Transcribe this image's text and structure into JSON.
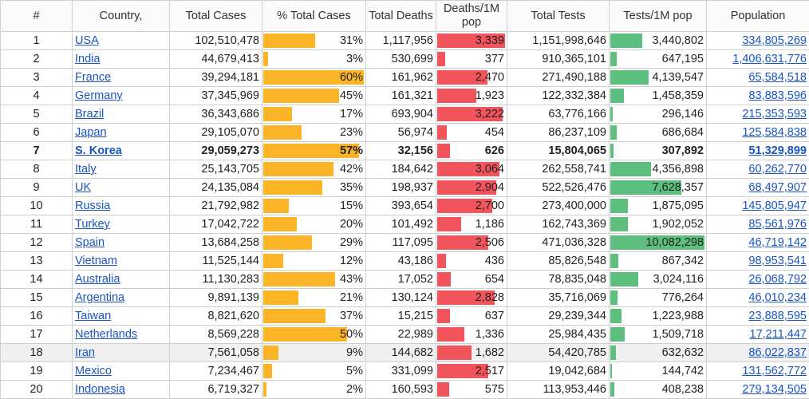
{
  "headers": {
    "rank": "#",
    "country": "Country,",
    "total_cases": "Total Cases",
    "pct_cases": "% Total Cases",
    "total_deaths": "Total Deaths",
    "deaths_per_m": "Deaths/1M pop",
    "total_tests": "Total Tests",
    "tests_per_m": "Tests/1M pop",
    "population": "Population"
  },
  "colors": {
    "pct_bar": "#fbb425",
    "deaths_bar": "#f2545b",
    "tests_bar": "#5cbf7d",
    "link": "#1a55c0"
  },
  "scale": {
    "pct_max": 60,
    "deaths_per_m_max": 3339,
    "tests_per_m_max": 10082298
  },
  "rows": [
    {
      "rank": "1",
      "country": "USA",
      "total_cases": "102,510,478",
      "pct": "31%",
      "pct_value": 31,
      "total_deaths": "1,117,956",
      "deaths_per_m": "3,339",
      "deaths_per_m_value": 3339,
      "total_tests": "1,151,998,646",
      "tests_per_m": "3,440,802",
      "tests_per_m_value": 3440802,
      "population": "334,805,269"
    },
    {
      "rank": "2",
      "country": "India",
      "total_cases": "44,679,413",
      "pct": "3%",
      "pct_value": 3,
      "total_deaths": "530,699",
      "deaths_per_m": "377",
      "deaths_per_m_value": 377,
      "total_tests": "910,365,101",
      "tests_per_m": "647,195",
      "tests_per_m_value": 647195,
      "population": "1,406,631,776"
    },
    {
      "rank": "3",
      "country": "France",
      "total_cases": "39,294,181",
      "pct": "60%",
      "pct_value": 60,
      "total_deaths": "161,962",
      "deaths_per_m": "2,470",
      "deaths_per_m_value": 2470,
      "total_tests": "271,490,188",
      "tests_per_m": "4,139,547",
      "tests_per_m_value": 4139547,
      "population": "65,584,518"
    },
    {
      "rank": "4",
      "country": "Germany",
      "total_cases": "37,345,969",
      "pct": "45%",
      "pct_value": 45,
      "total_deaths": "161,321",
      "deaths_per_m": "1,923",
      "deaths_per_m_value": 1923,
      "total_tests": "122,332,384",
      "tests_per_m": "1,458,359",
      "tests_per_m_value": 1458359,
      "population": "83,883,596"
    },
    {
      "rank": "5",
      "country": "Brazil",
      "total_cases": "36,343,686",
      "pct": "17%",
      "pct_value": 17,
      "total_deaths": "693,904",
      "deaths_per_m": "3,222",
      "deaths_per_m_value": 3222,
      "total_tests": "63,776,166",
      "tests_per_m": "296,146",
      "tests_per_m_value": 296146,
      "population": "215,353,593"
    },
    {
      "rank": "6",
      "country": "Japan",
      "total_cases": "29,105,070",
      "pct": "23%",
      "pct_value": 23,
      "total_deaths": "56,974",
      "deaths_per_m": "454",
      "deaths_per_m_value": 454,
      "total_tests": "86,237,109",
      "tests_per_m": "686,684",
      "tests_per_m_value": 686684,
      "population": "125,584,838"
    },
    {
      "rank": "7",
      "country": "S. Korea",
      "total_cases": "29,059,273",
      "pct": "57%",
      "pct_value": 57,
      "total_deaths": "32,156",
      "deaths_per_m": "626",
      "deaths_per_m_value": 626,
      "total_tests": "15,804,065",
      "tests_per_m": "307,892",
      "tests_per_m_value": 307892,
      "population": "51,329,899",
      "bold": true
    },
    {
      "rank": "8",
      "country": "Italy",
      "total_cases": "25,143,705",
      "pct": "42%",
      "pct_value": 42,
      "total_deaths": "184,642",
      "deaths_per_m": "3,064",
      "deaths_per_m_value": 3064,
      "total_tests": "262,558,741",
      "tests_per_m": "4,356,898",
      "tests_per_m_value": 4356898,
      "population": "60,262,770"
    },
    {
      "rank": "9",
      "country": "UK",
      "total_cases": "24,135,084",
      "pct": "35%",
      "pct_value": 35,
      "total_deaths": "198,937",
      "deaths_per_m": "2,904",
      "deaths_per_m_value": 2904,
      "total_tests": "522,526,476",
      "tests_per_m": "7,628,357",
      "tests_per_m_value": 7628357,
      "population": "68,497,907"
    },
    {
      "rank": "10",
      "country": "Russia",
      "total_cases": "21,792,982",
      "pct": "15%",
      "pct_value": 15,
      "total_deaths": "393,654",
      "deaths_per_m": "2,700",
      "deaths_per_m_value": 2700,
      "total_tests": "273,400,000",
      "tests_per_m": "1,875,095",
      "tests_per_m_value": 1875095,
      "population": "145,805,947"
    },
    {
      "rank": "11",
      "country": "Turkey",
      "total_cases": "17,042,722",
      "pct": "20%",
      "pct_value": 20,
      "total_deaths": "101,492",
      "deaths_per_m": "1,186",
      "deaths_per_m_value": 1186,
      "total_tests": "162,743,369",
      "tests_per_m": "1,902,052",
      "tests_per_m_value": 1902052,
      "population": "85,561,976"
    },
    {
      "rank": "12",
      "country": "Spain",
      "total_cases": "13,684,258",
      "pct": "29%",
      "pct_value": 29,
      "total_deaths": "117,095",
      "deaths_per_m": "2,506",
      "deaths_per_m_value": 2506,
      "total_tests": "471,036,328",
      "tests_per_m": "10,082,298",
      "tests_per_m_value": 10082298,
      "population": "46,719,142"
    },
    {
      "rank": "13",
      "country": "Vietnam",
      "total_cases": "11,525,144",
      "pct": "12%",
      "pct_value": 12,
      "total_deaths": "43,186",
      "deaths_per_m": "436",
      "deaths_per_m_value": 436,
      "total_tests": "85,826,548",
      "tests_per_m": "867,342",
      "tests_per_m_value": 867342,
      "population": "98,953,541"
    },
    {
      "rank": "14",
      "country": "Australia",
      "total_cases": "11,130,283",
      "pct": "43%",
      "pct_value": 43,
      "total_deaths": "17,052",
      "deaths_per_m": "654",
      "deaths_per_m_value": 654,
      "total_tests": "78,835,048",
      "tests_per_m": "3,024,116",
      "tests_per_m_value": 3024116,
      "population": "26,068,792"
    },
    {
      "rank": "15",
      "country": "Argentina",
      "total_cases": "9,891,139",
      "pct": "21%",
      "pct_value": 21,
      "total_deaths": "130,124",
      "deaths_per_m": "2,828",
      "deaths_per_m_value": 2828,
      "total_tests": "35,716,069",
      "tests_per_m": "776,264",
      "tests_per_m_value": 776264,
      "population": "46,010,234"
    },
    {
      "rank": "16",
      "country": "Taiwan",
      "total_cases": "8,821,620",
      "pct": "37%",
      "pct_value": 37,
      "total_deaths": "15,215",
      "deaths_per_m": "637",
      "deaths_per_m_value": 637,
      "total_tests": "29,239,344",
      "tests_per_m": "1,223,988",
      "tests_per_m_value": 1223988,
      "population": "23,888,595"
    },
    {
      "rank": "17",
      "country": "Netherlands",
      "total_cases": "8,569,228",
      "pct": "50%",
      "pct_value": 50,
      "total_deaths": "22,989",
      "deaths_per_m": "1,336",
      "deaths_per_m_value": 1336,
      "total_tests": "25,984,435",
      "tests_per_m": "1,509,718",
      "tests_per_m_value": 1509718,
      "population": "17,211,447"
    },
    {
      "rank": "18",
      "country": "Iran",
      "total_cases": "7,561,058",
      "pct": "9%",
      "pct_value": 9,
      "total_deaths": "144,682",
      "deaths_per_m": "1,682",
      "deaths_per_m_value": 1682,
      "total_tests": "54,420,785",
      "tests_per_m": "632,632",
      "tests_per_m_value": 632632,
      "population": "86,022,837",
      "highlight": true
    },
    {
      "rank": "19",
      "country": "Mexico",
      "total_cases": "7,234,467",
      "pct": "5%",
      "pct_value": 5,
      "total_deaths": "331,099",
      "deaths_per_m": "2,517",
      "deaths_per_m_value": 2517,
      "total_tests": "19,042,684",
      "tests_per_m": "144,742",
      "tests_per_m_value": 144742,
      "population": "131,562,772"
    },
    {
      "rank": "20",
      "country": "Indonesia",
      "total_cases": "6,719,327",
      "pct": "2%",
      "pct_value": 2,
      "total_deaths": "160,593",
      "deaths_per_m": "575",
      "deaths_per_m_value": 575,
      "total_tests": "113,953,446",
      "tests_per_m": "408,238",
      "tests_per_m_value": 408238,
      "population": "279,134,505"
    }
  ]
}
